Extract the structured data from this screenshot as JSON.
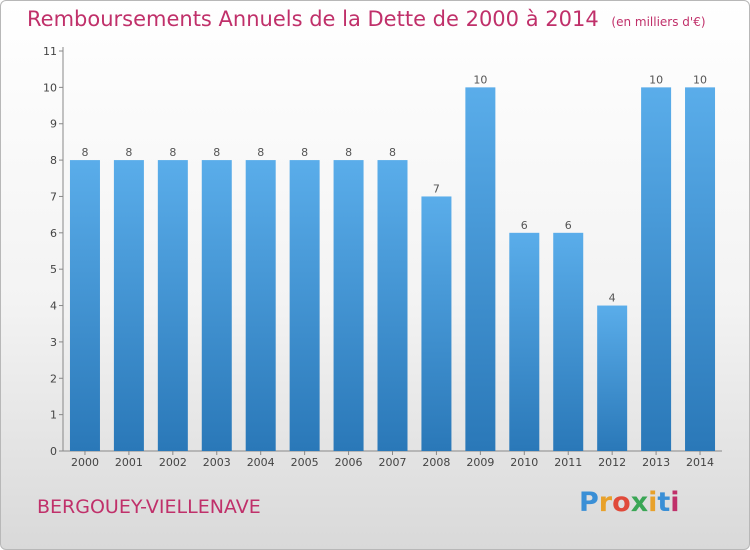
{
  "header": {
    "title": "Remboursements Annuels de la Dette de 2000 à 2014",
    "unit": "(en milliers d'€)"
  },
  "footer": {
    "commune": "BERGOUEY-VIELLENAVE",
    "logo": "Proxiti"
  },
  "colors": {
    "title": "#c0306a",
    "bar_top": "#5aadea",
    "bar_bottom": "#2a78b8"
  },
  "chart_data": {
    "type": "bar",
    "title": "Remboursements Annuels de la Dette de 2000 à 2014",
    "categories": [
      "2000",
      "2001",
      "2002",
      "2003",
      "2004",
      "2005",
      "2006",
      "2007",
      "2008",
      "2009",
      "2010",
      "2011",
      "2012",
      "2013",
      "2014"
    ],
    "values": [
      8,
      8,
      8,
      8,
      8,
      8,
      8,
      8,
      7,
      10,
      6,
      6,
      4,
      10,
      10
    ],
    "ylim": [
      0,
      11
    ],
    "yticks": [
      0,
      1,
      2,
      3,
      4,
      5,
      6,
      7,
      8,
      9,
      10,
      11
    ],
    "xlabel": "",
    "ylabel": "",
    "grid": false,
    "data_labels": true
  }
}
